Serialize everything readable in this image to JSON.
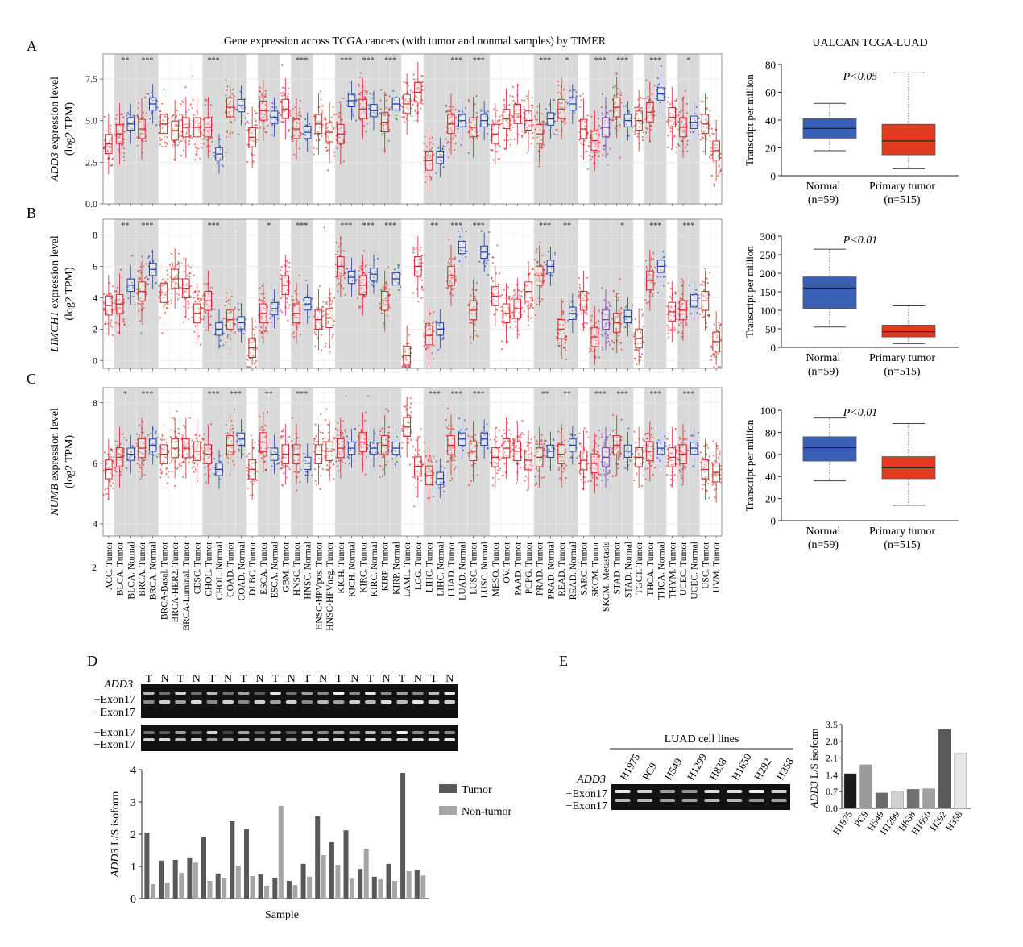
{
  "panel_letters": [
    "A",
    "B",
    "C",
    "D",
    "E"
  ],
  "timer": {
    "title": "Gene expression across TCGA cancers (with tumor and nonmal samples) by TIMER",
    "categories": [
      "ACC. Tumor",
      "BLCA. Tumor",
      "BLCA. Normal",
      "BRCA. Tumor",
      "BRCA. Normal",
      "BRCA-Basal. Tumor",
      "BRCA-HER2. Tumor",
      "BRCA-Luminal. Tumor",
      "CESC. Tumor",
      "CHOL. Tumor",
      "CHOL. Normal",
      "COAD. Tumor",
      "COAD. Normal",
      "DLBC. Tumor",
      "ESCA. Tumor",
      "ESCA. Normal",
      "GBM. Tumor",
      "HNSC. Tumor",
      "HNSC. Normal",
      "HNSC-HPVpos. Tumor",
      "HNSC-HPVneg. Tumor",
      "KICH. Tumor",
      "KICH. Normal",
      "KIRC. Tumor",
      "KIRC. Normal",
      "KIRP. Tumor",
      "KIRP. Normal",
      "LAML. Tumor",
      "LGG. Tumor",
      "LIHC. Tumor",
      "LIHC. Normal",
      "LUAD. Tumor",
      "LUAD. Normal",
      "LUSC. Tumor",
      "LUSC. Normal",
      "MESO. Tumor",
      "OV. Tumor",
      "PAAD. Tumor",
      "PCPG. Tumor",
      "PRAD. Tumor",
      "PRAD. Normal",
      "READ. Tumor",
      "READ. Normal",
      "SARC. Tumor",
      "SKCM. Tumor",
      "SKCM. Metastasis",
      "STAD. Tumor",
      "STAD. Normal",
      "TGCT. Tumor",
      "THCA. Tumor",
      "THCA. Normal",
      "THYM. Tumor",
      "UCEC. Tumor",
      "UCEC. Normal",
      "USC. Tumor",
      "UVM. Tumor"
    ],
    "shaded_pairs": [
      [
        1,
        2
      ],
      [
        3,
        4
      ],
      [
        9,
        10
      ],
      [
        11,
        12
      ],
      [
        14,
        15
      ],
      [
        17,
        18
      ],
      [
        21,
        22
      ],
      [
        23,
        24
      ],
      [
        25,
        26
      ],
      [
        29,
        30
      ],
      [
        31,
        32
      ],
      [
        33,
        34
      ],
      [
        39,
        40
      ],
      [
        41,
        42
      ],
      [
        44,
        45
      ],
      [
        46,
        47
      ],
      [
        49,
        50
      ],
      [
        52,
        53
      ]
    ],
    "colors": {
      "tumor": "#d62728",
      "normal": "#2444a8",
      "metastasis": "#7b3fb5",
      "shade": "#d9d9d9"
    },
    "panels": [
      {
        "gene": "ADD3",
        "ylabel_suffix": " expression level",
        "ylabel2": "(log2 TPM)",
        "ylim": [
          0,
          9
        ],
        "yticks": [
          "0.0",
          "2.5",
          "5.0",
          "7.5"
        ],
        "ytick_values": [
          0,
          2.5,
          5,
          7.5
        ],
        "medians": [
          3.6,
          4.2,
          4.8,
          4.5,
          6.0,
          4.8,
          4.4,
          4.6,
          4.6,
          4.6,
          3.0,
          5.8,
          5.9,
          4.0,
          5.6,
          5.2,
          5.7,
          4.5,
          4.3,
          4.8,
          4.3,
          4.2,
          6.2,
          5.7,
          5.6,
          4.9,
          6.0,
          6.0,
          6.7,
          2.6,
          2.8,
          4.8,
          5.0,
          4.6,
          5.0,
          4.2,
          5.1,
          5.4,
          5.0,
          4.2,
          5.1,
          5.7,
          6.0,
          4.5,
          3.8,
          4.6,
          5.8,
          5.0,
          5.0,
          5.5,
          6.6,
          5.2,
          4.6,
          4.9,
          4.8,
          3.2
        ],
        "sig": {
          "1": "**",
          "3": "***",
          "9": "***",
          "17": "***",
          "21": "***",
          "23": "***",
          "25": "***",
          "31": "***",
          "33": "***",
          "39": "***",
          "41": "*",
          "44": "***",
          "46": "***",
          "49": "***",
          "52": "*"
        }
      },
      {
        "gene": "LIMCH1",
        "ylabel_suffix": " expression level",
        "ylabel2": "(log2 TPM)",
        "ylim": [
          -0.5,
          9
        ],
        "yticks": [
          "0",
          "2",
          "4",
          "6",
          "8"
        ],
        "ytick_values": [
          0,
          2,
          4,
          6,
          8
        ],
        "medians": [
          3.5,
          3.6,
          4.8,
          4.4,
          5.8,
          4.3,
          5.2,
          4.6,
          3.0,
          3.8,
          2.0,
          2.6,
          2.4,
          0.8,
          3.0,
          3.3,
          4.8,
          3.0,
          3.6,
          2.6,
          2.7,
          6.0,
          5.3,
          4.8,
          5.5,
          3.8,
          5.2,
          0.3,
          6.0,
          1.6,
          2.0,
          5.4,
          7.2,
          3.2,
          6.9,
          4.1,
          3.0,
          3.3,
          4.4,
          5.4,
          6.0,
          2.0,
          3.0,
          3.8,
          1.5,
          2.6,
          2.4,
          2.8,
          1.4,
          5.1,
          6.0,
          3.1,
          3.2,
          3.8,
          3.8,
          1.2
        ],
        "sig": {
          "1": "**",
          "3": "***",
          "9": "***",
          "11": "-",
          "14": "*",
          "17": "***",
          "19": ".",
          "21": "***",
          "23": "***",
          "25": "***",
          "29": "**",
          "31": "***",
          "33": "***",
          "39": "***",
          "41": "**",
          "46": "*",
          "49": "***",
          "52": "***"
        }
      },
      {
        "gene": "NUMB",
        "ylabel_suffix": " expression level",
        "ylabel2": "(log2 TPM)",
        "ylim": [
          3.6,
          8.5
        ],
        "yticks": [
          "4",
          "6",
          "8"
        ],
        "ytick_values": [
          4,
          6,
          8
        ],
        "medians": [
          5.8,
          6.2,
          6.3,
          6.5,
          6.6,
          6.3,
          6.5,
          6.5,
          6.4,
          6.3,
          5.8,
          6.6,
          6.8,
          5.8,
          6.7,
          6.3,
          6.3,
          6.3,
          6.0,
          6.3,
          6.4,
          6.5,
          6.5,
          6.7,
          6.5,
          6.6,
          6.5,
          7.2,
          5.9,
          5.6,
          5.5,
          6.6,
          6.8,
          6.4,
          6.8,
          6.2,
          6.5,
          6.4,
          6.1,
          6.2,
          6.4,
          6.3,
          6.6,
          6.1,
          6.0,
          6.2,
          6.6,
          6.4,
          6.2,
          6.4,
          6.5,
          6.2,
          6.3,
          6.5,
          5.8,
          5.7
        ],
        "sig": {
          "1": "*",
          "3": "***",
          "9": "***",
          "11": "***",
          "14": "**",
          "17": "***",
          "21": ".",
          "23": ".",
          "29": "***",
          "31": "***",
          "33": "***",
          "39": "**",
          "41": "**",
          "44": "***",
          "46": "***",
          "49": "***",
          "52": "***"
        }
      }
    ],
    "x_axis_extra_tick": "2"
  },
  "ualcan": {
    "title": "UALCAN TCGA-LUAD",
    "ylabel": "Transcript per million",
    "groups": [
      {
        "name": "Normal",
        "n": "(n=59)",
        "color": "#3a5fb5"
      },
      {
        "name": "Primary tumor",
        "n": "(n=515)",
        "color": "#e03a20"
      }
    ],
    "panels": [
      {
        "pvalue": "P<0.05",
        "yticks": [
          "0",
          "20",
          "40",
          "60",
          "80"
        ],
        "ytick_values": [
          0,
          20,
          40,
          60,
          80
        ],
        "ymax": 80,
        "boxes": [
          {
            "min": 18,
            "q1": 27,
            "median": 34,
            "q3": 41,
            "max": 52
          },
          {
            "min": 5,
            "q1": 15,
            "median": 25,
            "q3": 37,
            "max": 74
          }
        ]
      },
      {
        "pvalue": "P<0.01",
        "yticks": [
          "0",
          "50",
          "100",
          "150",
          "200",
          "250",
          "300"
        ],
        "ytick_values": [
          0,
          50,
          100,
          150,
          200,
          250,
          300
        ],
        "ymax": 300,
        "boxes": [
          {
            "min": 55,
            "q1": 105,
            "median": 160,
            "q3": 190,
            "max": 265
          },
          {
            "min": 10,
            "q1": 28,
            "median": 42,
            "q3": 60,
            "max": 112
          }
        ]
      },
      {
        "pvalue": "P<0.01",
        "yticks": [
          "0",
          "20",
          "40",
          "60",
          "80",
          "100"
        ],
        "ytick_values": [
          0,
          20,
          40,
          60,
          80,
          100
        ],
        "ymax": 100,
        "boxes": [
          {
            "min": 36,
            "q1": 54,
            "median": 66,
            "q3": 76,
            "max": 93
          },
          {
            "min": 14,
            "q1": 38,
            "median": 48,
            "q3": 58,
            "max": 88
          }
        ]
      }
    ]
  },
  "gel_d": {
    "gene": "ADD3",
    "lanes": [
      "T",
      "N",
      "T",
      "N",
      "T",
      "N",
      "T",
      "N",
      "T",
      "N",
      "T",
      "N",
      "T",
      "N",
      "T",
      "N",
      "T",
      "N",
      "T",
      "N"
    ],
    "upper_label": "+Exon17",
    "lower_label": "−Exon17"
  },
  "chart_d": {
    "type": "bar",
    "ylabel_italic": "ADD3",
    "ylabel_rest": " L/S isoform",
    "xlabel": "Sample",
    "ylim": [
      0,
      4
    ],
    "yticks": [
      "0",
      "1",
      "2",
      "3",
      "4"
    ],
    "series": [
      {
        "name": "Tumor",
        "color": "#595959",
        "values": [
          2.05,
          1.18,
          1.2,
          1.28,
          1.9,
          0.78,
          2.4,
          2.15,
          0.75,
          0.65,
          0.55,
          1.08,
          2.55,
          1.75,
          2.12,
          0.92,
          0.68,
          1.08,
          3.9,
          0.88
        ]
      },
      {
        "name": "Non-tumor",
        "color": "#a6a6a6",
        "values": [
          0.45,
          0.48,
          0.8,
          1.12,
          0.55,
          0.65,
          1.02,
          0.7,
          0.4,
          2.88,
          0.42,
          0.68,
          1.35,
          1.05,
          0.62,
          1.55,
          0.6,
          0.55,
          0.85,
          0.72
        ]
      }
    ]
  },
  "panel_e": {
    "title": "LUAD cell lines",
    "gene": "ADD3",
    "cell_lines": [
      "H1975",
      "PC9",
      "H549",
      "H1299",
      "H838",
      "H1650",
      "H292",
      "H358"
    ],
    "upper_label": "+Exon17",
    "lower_label": "−Exon17"
  },
  "chart_e": {
    "type": "bar",
    "categories": [
      "H1975",
      "PC9",
      "H549",
      "H1299",
      "H838",
      "H1650",
      "H292",
      "H358"
    ],
    "values": [
      1.45,
      1.82,
      0.65,
      0.72,
      0.8,
      0.82,
      3.3,
      2.3
    ],
    "colors": [
      "#1a1a1a",
      "#9a9a9a",
      "#6a6a6a",
      "#cfcfcf",
      "#707070",
      "#a0a0a0",
      "#5a5a5a",
      "#e6e6e6"
    ],
    "ylabel_italic": "ADD3",
    "ylabel_rest": " L/S isoform",
    "ylim": [
      0,
      3.5
    ],
    "yticks": [
      "0.0",
      "0.7",
      "1.4",
      "2.1",
      "2.8",
      "3.5"
    ],
    "ytick_values": [
      0,
      0.7,
      1.4,
      2.1,
      2.8,
      3.5
    ]
  }
}
